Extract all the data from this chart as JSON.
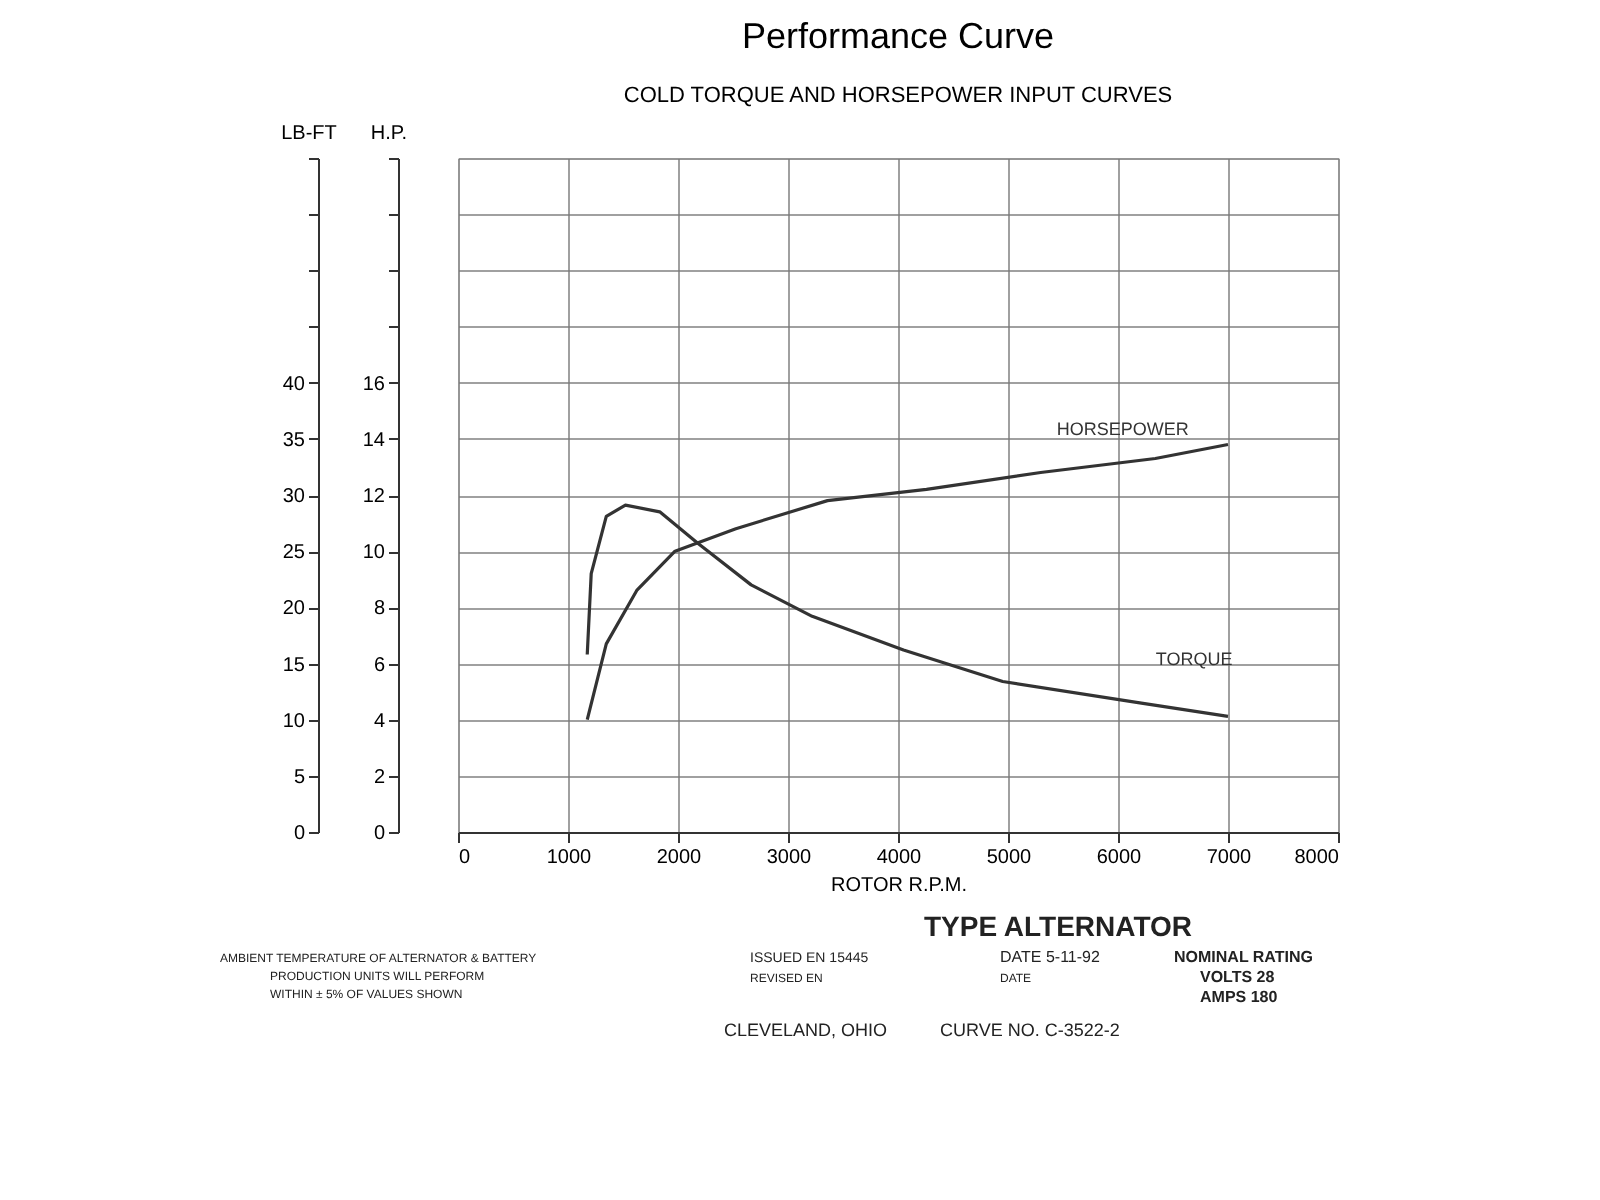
{
  "chart_data": {
    "type": "line",
    "title": "Performance Curve",
    "subtitle": "COLD TORQUE AND HORSEPOWER INPUT CURVES",
    "xlabel": "ROTOR R.P.M.",
    "ylabel": "LB-FT",
    "y2label": "H.P.",
    "xlim": [
      0,
      8000
    ],
    "xticks": [
      0,
      1000,
      2000,
      3000,
      4000,
      5000,
      6000,
      7000,
      8000
    ],
    "ylim": [
      0,
      60
    ],
    "yticks": [
      0,
      5,
      10,
      15,
      20,
      25,
      30,
      35,
      40,
      {
        "value": 45,
        "label": null
      },
      {
        "value": 50,
        "label": null
      },
      {
        "value": 55,
        "label": null
      },
      {
        "value": 60,
        "label": null
      }
    ],
    "y2lim": [
      0,
      24
    ],
    "y2ticks": [
      0,
      2,
      4,
      6,
      8,
      10,
      12,
      14,
      16,
      {
        "value": 18,
        "label": null
      },
      {
        "value": 20,
        "label": null
      },
      {
        "value": 22,
        "label": null
      },
      {
        "value": 24,
        "label": null
      }
    ],
    "grid": true,
    "legend": false,
    "marker": "none",
    "line_style": "solid",
    "series": [
      {
        "name": "TORQUE",
        "color": "#333333",
        "x": [
          1175,
          1211,
          1348,
          1522,
          1834,
          2180,
          2665,
          3220,
          4050,
          4952,
          6198,
          7000
        ],
        "values": [
          15.8,
          23,
          28.1,
          29.1,
          28.5,
          25.7,
          22,
          19.2,
          16.2,
          13.4,
          11.5,
          10.3
        ]
      },
      {
        "name": "HORSEPOWER",
        "color": "#333333",
        "axis": "y2",
        "x": [
          1175,
          1348,
          1625,
          1973,
          2526,
          3359,
          4259,
          5297,
          6339,
          7000
        ],
        "values": [
          4.0,
          6.7,
          8.6,
          10.0,
          10.8,
          11.8,
          12.2,
          12.8,
          13.3,
          13.8
        ]
      }
    ],
    "annotations": [
      "TYPE ALTERNATOR",
      "AMBIENT TEMPERATURE OF ALTERNATOR & BATTERY",
      "PRODUCTION UNITS WILL PERFORM",
      "WITHIN ± 5% OF VALUES SHOWN",
      "ISSUED EN 15445",
      "REVISED EN",
      "DATE 5-11-92",
      "DATE",
      "NOMINAL RATING",
      "VOLTS 28",
      "AMPS 180",
      "CLEVELAND, OHIO",
      "CURVE NO. C-3522-2"
    ]
  }
}
